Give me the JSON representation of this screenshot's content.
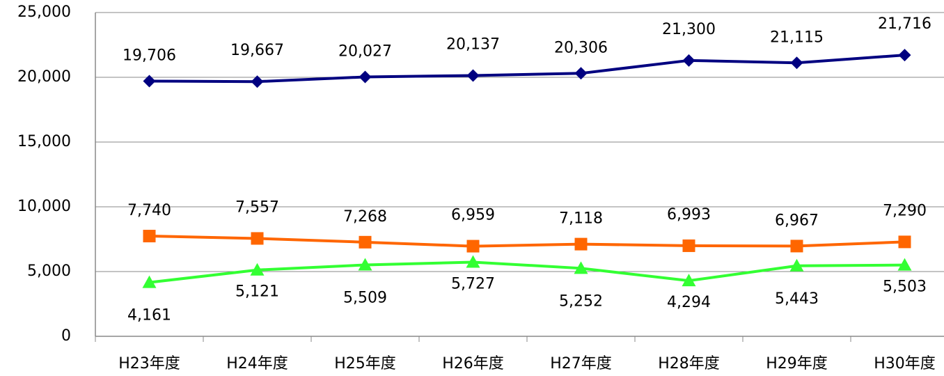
{
  "chart_data": {
    "type": "line",
    "categories": [
      "H23年度",
      "H24年度",
      "H25年度",
      "H26年度",
      "H27年度",
      "H28年度",
      "H29年度",
      "H30年度"
    ],
    "series": [
      {
        "color": "#000080",
        "marker": "diamond",
        "label_position": "above",
        "values": [
          19706,
          19667,
          20027,
          20137,
          20306,
          21300,
          21115,
          21716
        ],
        "value_labels": [
          "19,706",
          "19,667",
          "20,027",
          "20,137",
          "20,306",
          "21,300",
          "21,115",
          "21,716"
        ]
      },
      {
        "color": "#FF6600",
        "marker": "square",
        "label_position": "above",
        "values": [
          7740,
          7557,
          7268,
          6959,
          7118,
          6993,
          6967,
          7290
        ],
        "value_labels": [
          "7,740",
          "7,557",
          "7,268",
          "6,959",
          "7,118",
          "6,993",
          "6,967",
          "7,290"
        ]
      },
      {
        "color": "#33FF33",
        "marker": "triangle",
        "label_position": "below",
        "values": [
          4161,
          5121,
          5509,
          5727,
          5252,
          4294,
          5443,
          5503
        ],
        "value_labels": [
          "4,161",
          "5,121",
          "5,509",
          "5,727",
          "5,252",
          "4,294",
          "5,443",
          "5,503"
        ]
      }
    ],
    "ylim": [
      0,
      25000
    ],
    "yticks": [
      0,
      {
        "value": 5000,
        "label": "5,000"
      },
      {
        "value": 10000,
        "label": "10,000"
      },
      {
        "value": 15000,
        "label": "15,000"
      },
      {
        "value": 20000,
        "label": "20,000"
      },
      {
        "value": 25000,
        "label": "25,000"
      }
    ],
    "grid": true
  }
}
